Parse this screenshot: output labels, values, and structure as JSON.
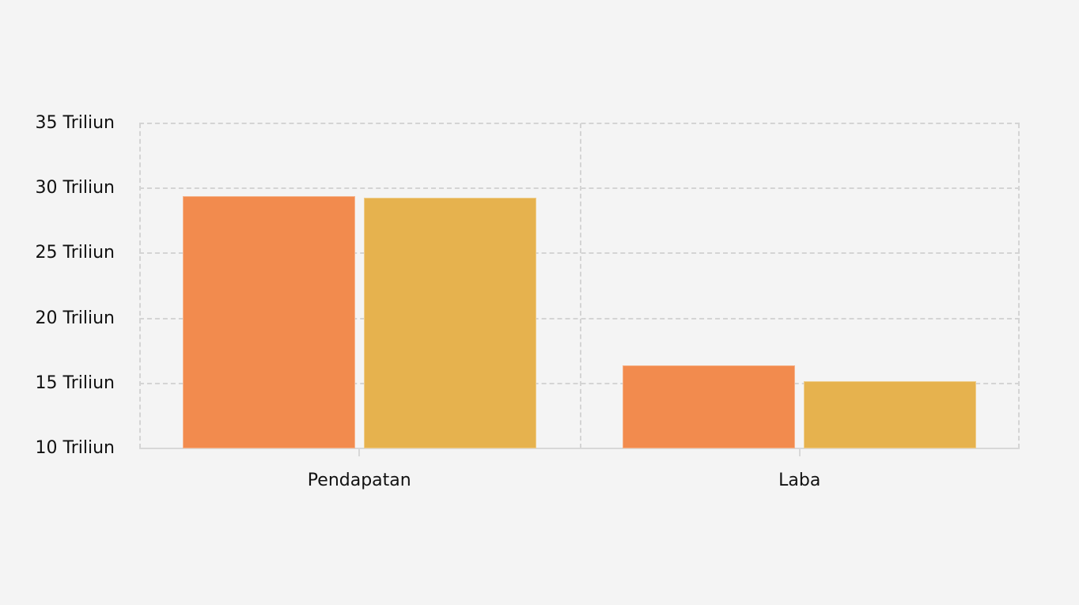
{
  "chart_data": {
    "type": "bar",
    "title": "",
    "xlabel": "",
    "ylabel": "",
    "categories": [
      "Pendapatan",
      "Laba"
    ],
    "series": [
      {
        "name": "",
        "color": "#f28b4e",
        "values": [
          29.4,
          16.4
        ]
      },
      {
        "name": "",
        "color": "#e6b24e",
        "values": [
          29.3,
          15.2
        ]
      }
    ],
    "ylim": [
      10,
      35
    ],
    "yticks": [
      10,
      15,
      20,
      25,
      30,
      35
    ],
    "ytick_labels": [
      "10 Triliun",
      "15 Triliun",
      "20 Triliun",
      "25 Triliun",
      "30 Triliun",
      "35 Triliun"
    ],
    "grid": true,
    "legend": null,
    "unit": "Triliun"
  },
  "axis": {
    "y_labels": [
      "35 Triliun",
      "30 Triliun",
      "25 Triliun",
      "20 Triliun",
      "15 Triliun",
      "10 Triliun"
    ],
    "x_labels": [
      "Pendapatan",
      "Laba"
    ]
  }
}
